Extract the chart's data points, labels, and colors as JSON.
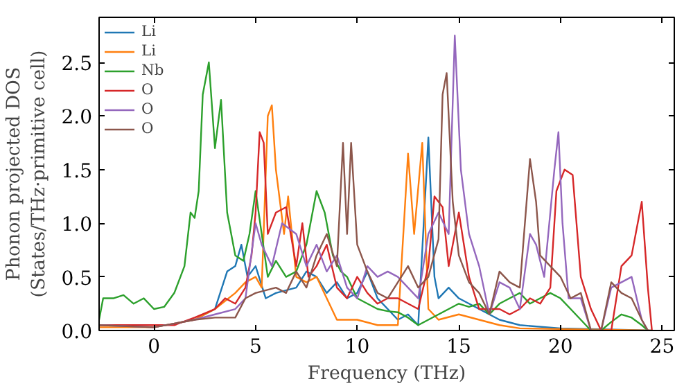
{
  "chart_data": {
    "type": "line",
    "xlabel": "Frequency (THz)",
    "ylabel": "Phonon projected DOS\n(States/THz·primitive cell)",
    "xlim": [
      -2.7,
      25.6
    ],
    "ylim": [
      0,
      2.92
    ],
    "xticks": [
      0,
      5,
      10,
      15,
      20,
      25
    ],
    "yticks": [
      {
        "value": 0,
        "label": "0.0"
      },
      0.5,
      {
        "value": 1,
        "label": "1.0"
      },
      1.5,
      {
        "value": 2,
        "label": "2.0"
      },
      2.5
    ],
    "grid": false,
    "legend": "top left",
    "series": [
      {
        "name": "Li",
        "color": "#1f77b4",
        "x": [
          2,
          3,
          3.6,
          4,
          4.3,
          4.6,
          5,
          5.5,
          6,
          7,
          7.5,
          8,
          8.5,
          9,
          9.5,
          10,
          10.5,
          11,
          11.5,
          12,
          12.5,
          13,
          13.5,
          13.8,
          14,
          14.5,
          15,
          16,
          17,
          18,
          20,
          24.5
        ],
        "values": [
          0.1,
          0.2,
          0.55,
          0.6,
          0.8,
          0.5,
          0.6,
          0.3,
          0.35,
          0.4,
          0.55,
          0.5,
          0.35,
          0.45,
          0.3,
          0.35,
          0.55,
          0.3,
          0.2,
          0.1,
          0.15,
          0.05,
          1.8,
          0.5,
          0.3,
          0.4,
          0.3,
          0.2,
          0.1,
          0.05,
          0.02,
          0
        ]
      },
      {
        "name": "Li",
        "color": "#ff7f0e",
        "x": [
          -2.7,
          0,
          2,
          3,
          4,
          4.5,
          5,
          5.3,
          5.6,
          5.8,
          6,
          6.4,
          6.6,
          7,
          7.5,
          8,
          8.5,
          9,
          10,
          11,
          12,
          12.3,
          12.5,
          12.8,
          13.2,
          13.5,
          14,
          15,
          16,
          17,
          18,
          24.5
        ],
        "values": [
          0.03,
          0.03,
          0.1,
          0.2,
          0.35,
          0.45,
          0.5,
          0.4,
          2.0,
          2.1,
          1.5,
          0.9,
          1.25,
          0.5,
          0.45,
          0.5,
          0.3,
          0.1,
          0.1,
          0.05,
          0.05,
          1.0,
          1.65,
          0.9,
          1.75,
          0.2,
          0.1,
          0.15,
          0.1,
          0.05,
          0.02,
          0
        ]
      },
      {
        "name": "Nb",
        "color": "#2ca02c",
        "x": [
          -2.7,
          -2.5,
          -2,
          -1.5,
          -1,
          -0.5,
          0,
          0.5,
          1,
          1.5,
          1.8,
          2,
          2.2,
          2.4,
          2.7,
          3,
          3.3,
          3.6,
          4,
          4.4,
          4.7,
          5,
          5.3,
          5.6,
          6,
          6.5,
          7,
          7.5,
          8,
          8.4,
          8.8,
          9.2,
          9.5,
          10,
          10.5,
          11,
          11.5,
          12,
          12.5,
          13,
          13.5,
          14,
          14.5,
          15,
          15.5,
          16,
          16.5,
          17,
          17.5,
          18,
          18.5,
          19,
          19.5,
          20,
          20.5,
          21,
          21.5,
          22,
          22.5,
          23,
          23.5,
          24,
          24.3
        ],
        "values": [
          0.1,
          0.3,
          0.3,
          0.33,
          0.25,
          0.3,
          0.2,
          0.22,
          0.35,
          0.6,
          1.1,
          1.05,
          1.3,
          2.2,
          2.5,
          1.7,
          2.15,
          1.1,
          0.7,
          0.65,
          0.9,
          1.3,
          0.9,
          0.5,
          0.65,
          0.5,
          0.55,
          0.8,
          1.3,
          1.1,
          0.7,
          0.55,
          0.5,
          0.3,
          0.25,
          0.2,
          0.18,
          0.17,
          0.12,
          0.05,
          0.1,
          0.15,
          0.2,
          0.25,
          0.22,
          0.25,
          0.15,
          0.25,
          0.3,
          0.35,
          0.25,
          0.3,
          0.35,
          0.3,
          0.2,
          0.1,
          0.0,
          0.0,
          0.08,
          0.15,
          0.12,
          0.05,
          0
        ]
      },
      {
        "name": "O",
        "color": "#d62728",
        "x": [
          -2.7,
          1,
          2,
          3,
          3.5,
          4,
          4.5,
          4.8,
          5,
          5.2,
          5.4,
          5.6,
          6,
          6.5,
          7,
          7.3,
          7.6,
          8,
          8.5,
          9,
          9.5,
          10,
          10.5,
          11,
          11.5,
          12,
          12.5,
          13,
          13.5,
          13.8,
          14.2,
          14.5,
          15,
          15.5,
          16,
          16.5,
          17,
          17.5,
          18,
          18.5,
          19,
          19.5,
          19.8,
          20.2,
          20.6,
          21,
          21.5,
          22,
          22.5,
          23,
          23.5,
          24,
          24.3,
          24.5
        ],
        "values": [
          0.05,
          0.05,
          0.12,
          0.2,
          0.3,
          0.25,
          0.4,
          0.7,
          1.1,
          1.85,
          1.75,
          0.9,
          1.1,
          1.15,
          0.6,
          1.0,
          0.5,
          0.6,
          0.8,
          0.4,
          0.3,
          0.5,
          0.35,
          0.25,
          0.3,
          0.3,
          0.25,
          0.2,
          0.6,
          1.25,
          1.15,
          0.6,
          1.1,
          0.5,
          0.2,
          0.2,
          0.2,
          0.15,
          0.2,
          0.3,
          0.25,
          0.4,
          1.3,
          1.5,
          1.45,
          0.5,
          0.2,
          0.0,
          0.0,
          0.6,
          0.7,
          1.2,
          0.4,
          0
        ]
      },
      {
        "name": "O",
        "color": "#9467bd",
        "x": [
          -2.7,
          0,
          2,
          3,
          4,
          4.5,
          5,
          5.3,
          5.8,
          6.3,
          7,
          7.5,
          8,
          8.5,
          9,
          9.5,
          10,
          10.5,
          11,
          11.5,
          12,
          12.5,
          13,
          13.5,
          14,
          14.5,
          14.8,
          15.1,
          15.5,
          16,
          16.5,
          17,
          17.5,
          18,
          18.5,
          18.8,
          19.2,
          19.7,
          19.9,
          20.1,
          20.4,
          21,
          21.5,
          22,
          22.5,
          23,
          23.5,
          24,
          24.3
        ],
        "values": [
          0.05,
          0.03,
          0.1,
          0.15,
          0.2,
          0.3,
          1.0,
          0.8,
          0.6,
          1.0,
          0.9,
          0.6,
          0.8,
          0.55,
          0.7,
          0.4,
          0.3,
          0.6,
          0.5,
          0.55,
          0.5,
          0.4,
          0.3,
          0.9,
          1.1,
          0.9,
          2.75,
          1.5,
          0.9,
          0.6,
          0.15,
          0.45,
          0.4,
          0.2,
          0.9,
          0.8,
          0.5,
          1.5,
          1.85,
          1.0,
          0.3,
          0.3,
          0.0,
          0.0,
          0.4,
          0.45,
          0.5,
          0.1,
          0
        ]
      },
      {
        "name": "O",
        "color": "#8c564b",
        "x": [
          -2.7,
          0,
          2,
          3,
          4,
          4.5,
          5,
          6,
          6.5,
          7,
          7.5,
          8,
          8.5,
          9,
          9.3,
          9.5,
          9.7,
          10,
          10.5,
          11,
          11.5,
          12,
          12.5,
          13,
          13.5,
          14,
          14.2,
          14.4,
          14.7,
          15,
          15.5,
          16,
          16.5,
          17,
          17.5,
          18,
          18.5,
          18.8,
          19,
          19.5,
          20,
          20.5,
          21,
          21.5,
          22,
          22.5,
          23,
          23.5,
          24,
          24.3
        ],
        "values": [
          0.05,
          0.03,
          0.1,
          0.12,
          0.12,
          0.3,
          0.35,
          0.4,
          0.35,
          0.55,
          0.4,
          0.7,
          0.9,
          0.6,
          1.75,
          0.9,
          1.75,
          0.8,
          0.55,
          0.35,
          0.3,
          0.45,
          0.6,
          0.4,
          0.5,
          0.85,
          2.2,
          2.4,
          1.2,
          0.7,
          0.45,
          0.35,
          0.15,
          0.55,
          0.45,
          0.4,
          1.6,
          1.2,
          0.7,
          0.6,
          0.5,
          0.3,
          0.35,
          0.0,
          0.0,
          0.45,
          0.35,
          0.3,
          0.1,
          0
        ]
      }
    ]
  }
}
